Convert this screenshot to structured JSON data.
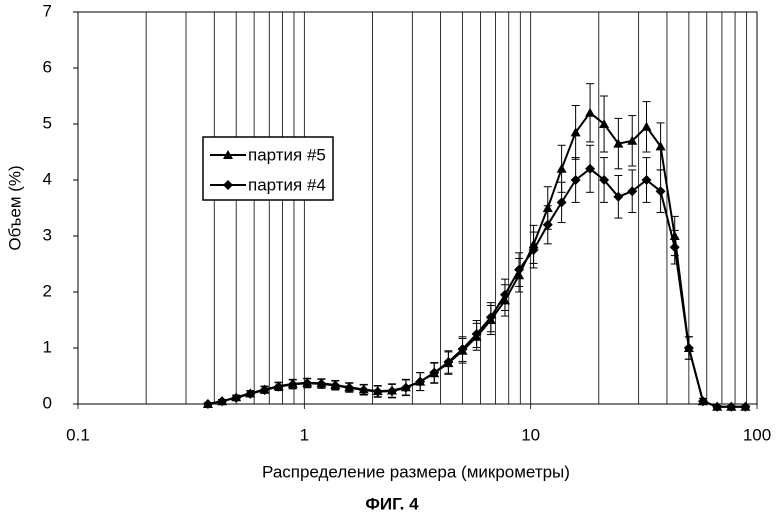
{
  "chart_data": {
    "type": "line",
    "x_label": "Распределение размера (микрометры)",
    "y_label": "Объем (%)",
    "caption": "ФИГ. 4",
    "log_x": true,
    "xlim": [
      0.1,
      100
    ],
    "xticks": [
      0.1,
      1,
      10,
      100
    ],
    "xminor": [
      0.2,
      0.3,
      0.4,
      0.5,
      0.6,
      0.7,
      0.8,
      0.9,
      2,
      3,
      4,
      5,
      6,
      7,
      8,
      9,
      20,
      30,
      40,
      50,
      60,
      70,
      80,
      90
    ],
    "ylim": [
      0,
      7
    ],
    "yticks": [
      0,
      1,
      2,
      3,
      4,
      5,
      6,
      7
    ],
    "x": [
      0.375,
      0.433,
      0.5,
      0.577,
      0.667,
      0.77,
      0.889,
      1.03,
      1.19,
      1.37,
      1.58,
      1.83,
      2.11,
      2.44,
      2.81,
      3.25,
      3.75,
      4.33,
      5.0,
      5.77,
      6.67,
      7.7,
      8.89,
      10.3,
      11.9,
      13.7,
      15.8,
      18.3,
      21.1,
      24.4,
      28.1,
      32.5,
      37.5,
      43.3,
      50.0,
      57.7,
      66.7,
      77.0,
      88.9
    ],
    "series": [
      {
        "name": "партия #5",
        "color": "#000000",
        "marker": "triangle",
        "values": [
          0,
          0.05,
          0.12,
          0.19,
          0.26,
          0.32,
          0.36,
          0.38,
          0.37,
          0.34,
          0.3,
          0.26,
          0.23,
          0.24,
          0.3,
          0.4,
          0.55,
          0.73,
          0.95,
          1.2,
          1.5,
          1.85,
          2.3,
          2.85,
          3.5,
          4.2,
          4.85,
          5.2,
          5.0,
          4.65,
          4.7,
          4.95,
          4.6,
          3.0,
          1.0,
          0.05,
          -0.05,
          -0.05,
          -0.05
        ],
        "errors": [
          0.02,
          0.03,
          0.04,
          0.05,
          0.06,
          0.07,
          0.08,
          0.08,
          0.08,
          0.08,
          0.08,
          0.09,
          0.1,
          0.12,
          0.14,
          0.16,
          0.18,
          0.2,
          0.22,
          0.24,
          0.26,
          0.28,
          0.3,
          0.34,
          0.38,
          0.42,
          0.48,
          0.52,
          0.5,
          0.45,
          0.45,
          0.45,
          0.42,
          0.35,
          0.2,
          0.05,
          0.02,
          0.02,
          0.02
        ]
      },
      {
        "name": "партия #4",
        "color": "#000000",
        "marker": "diamond",
        "values": [
          0,
          0.05,
          0.11,
          0.18,
          0.25,
          0.31,
          0.35,
          0.37,
          0.36,
          0.33,
          0.29,
          0.25,
          0.22,
          0.23,
          0.29,
          0.4,
          0.56,
          0.75,
          0.98,
          1.25,
          1.55,
          1.95,
          2.4,
          2.75,
          3.2,
          3.6,
          4.0,
          4.2,
          4.0,
          3.7,
          3.8,
          4.0,
          3.8,
          2.8,
          1.0,
          0.05,
          -0.05,
          -0.05,
          -0.05
        ],
        "errors": [
          0.02,
          0.03,
          0.04,
          0.05,
          0.06,
          0.07,
          0.08,
          0.08,
          0.08,
          0.08,
          0.08,
          0.09,
          0.1,
          0.12,
          0.14,
          0.16,
          0.18,
          0.2,
          0.22,
          0.24,
          0.26,
          0.28,
          0.3,
          0.32,
          0.34,
          0.36,
          0.4,
          0.42,
          0.4,
          0.38,
          0.38,
          0.4,
          0.38,
          0.3,
          0.2,
          0.05,
          0.02,
          0.02,
          0.02
        ]
      }
    ]
  }
}
